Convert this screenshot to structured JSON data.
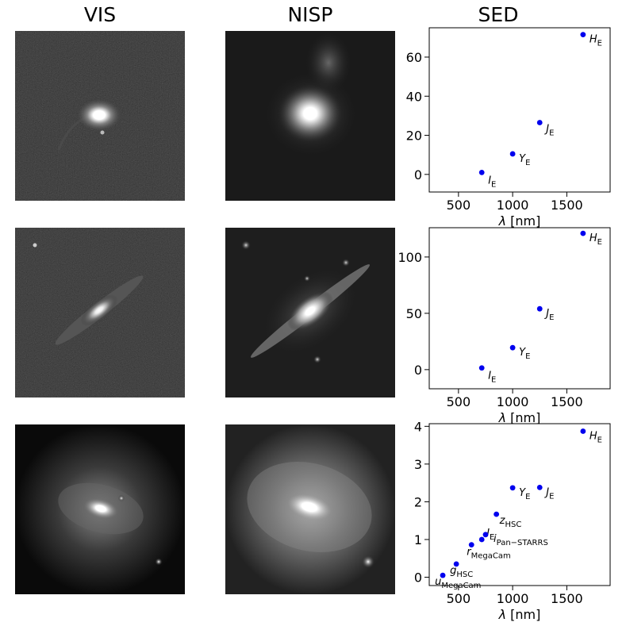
{
  "columns": {
    "vis": "VIS",
    "nisp": "NISP",
    "sed": "SED"
  },
  "chart_data": [
    {
      "type": "scatter",
      "title": "SED",
      "xlabel": "λ [nm]",
      "ylabel": "",
      "xlim": [
        230,
        1900
      ],
      "ylim": [
        -9,
        75
      ],
      "xticks": [
        500,
        1000,
        1500
      ],
      "yticks": [
        0,
        20,
        40,
        60
      ],
      "color": "#0000ee",
      "points": [
        {
          "x": 715,
          "y": 1,
          "label": "I",
          "sub": "E"
        },
        {
          "x": 1000,
          "y": 10.5,
          "label": "Y",
          "sub": "E"
        },
        {
          "x": 1250,
          "y": 26.5,
          "label": "J",
          "sub": "E"
        },
        {
          "x": 1650,
          "y": 71.5,
          "label": "H",
          "sub": "E"
        }
      ]
    },
    {
      "type": "scatter",
      "title": "SED",
      "xlabel": "λ [nm]",
      "ylabel": "",
      "xlim": [
        230,
        1900
      ],
      "ylim": [
        -17,
        126
      ],
      "xticks": [
        500,
        1000,
        1500
      ],
      "yticks": [
        0,
        50,
        100
      ],
      "color": "#0000ee",
      "points": [
        {
          "x": 715,
          "y": 1.5,
          "label": "I",
          "sub": "E"
        },
        {
          "x": 1000,
          "y": 19.5,
          "label": "Y",
          "sub": "E"
        },
        {
          "x": 1250,
          "y": 54,
          "label": "J",
          "sub": "E"
        },
        {
          "x": 1650,
          "y": 121,
          "label": "H",
          "sub": "E"
        }
      ]
    },
    {
      "type": "scatter",
      "title": "SED",
      "xlabel": "λ [nm]",
      "ylabel": "",
      "xlim": [
        230,
        1900
      ],
      "ylim": [
        -0.22,
        4.07
      ],
      "xticks": [
        500,
        1000,
        1500
      ],
      "yticks": [
        0,
        1,
        2,
        3,
        4
      ],
      "color": "#0000ee",
      "points": [
        {
          "x": 355,
          "y": 0.05,
          "label": "u",
          "sub": "MegaCam"
        },
        {
          "x": 480,
          "y": 0.35,
          "label": "g",
          "sub": "HSC"
        },
        {
          "x": 620,
          "y": 0.86,
          "label": "r",
          "sub": "MegaCam"
        },
        {
          "x": 715,
          "y": 1.0,
          "label": "I",
          "sub": "E"
        },
        {
          "x": 750,
          "y": 1.13,
          "label": "i",
          "sub": "Pan−STARRS"
        },
        {
          "x": 850,
          "y": 1.67,
          "label": "z",
          "sub": "HSC"
        },
        {
          "x": 1000,
          "y": 2.37,
          "label": "Y",
          "sub": "E"
        },
        {
          "x": 1250,
          "y": 2.38,
          "label": "J",
          "sub": "E"
        },
        {
          "x": 1650,
          "y": 3.87,
          "label": "H",
          "sub": "E"
        }
      ]
    }
  ],
  "icons": {
    "vis_images": [
      "vis-galaxy-image-1",
      "vis-galaxy-image-2",
      "vis-galaxy-image-3"
    ],
    "nisp_images": [
      "nisp-galaxy-image-1",
      "nisp-galaxy-image-2",
      "nisp-galaxy-image-3"
    ]
  }
}
